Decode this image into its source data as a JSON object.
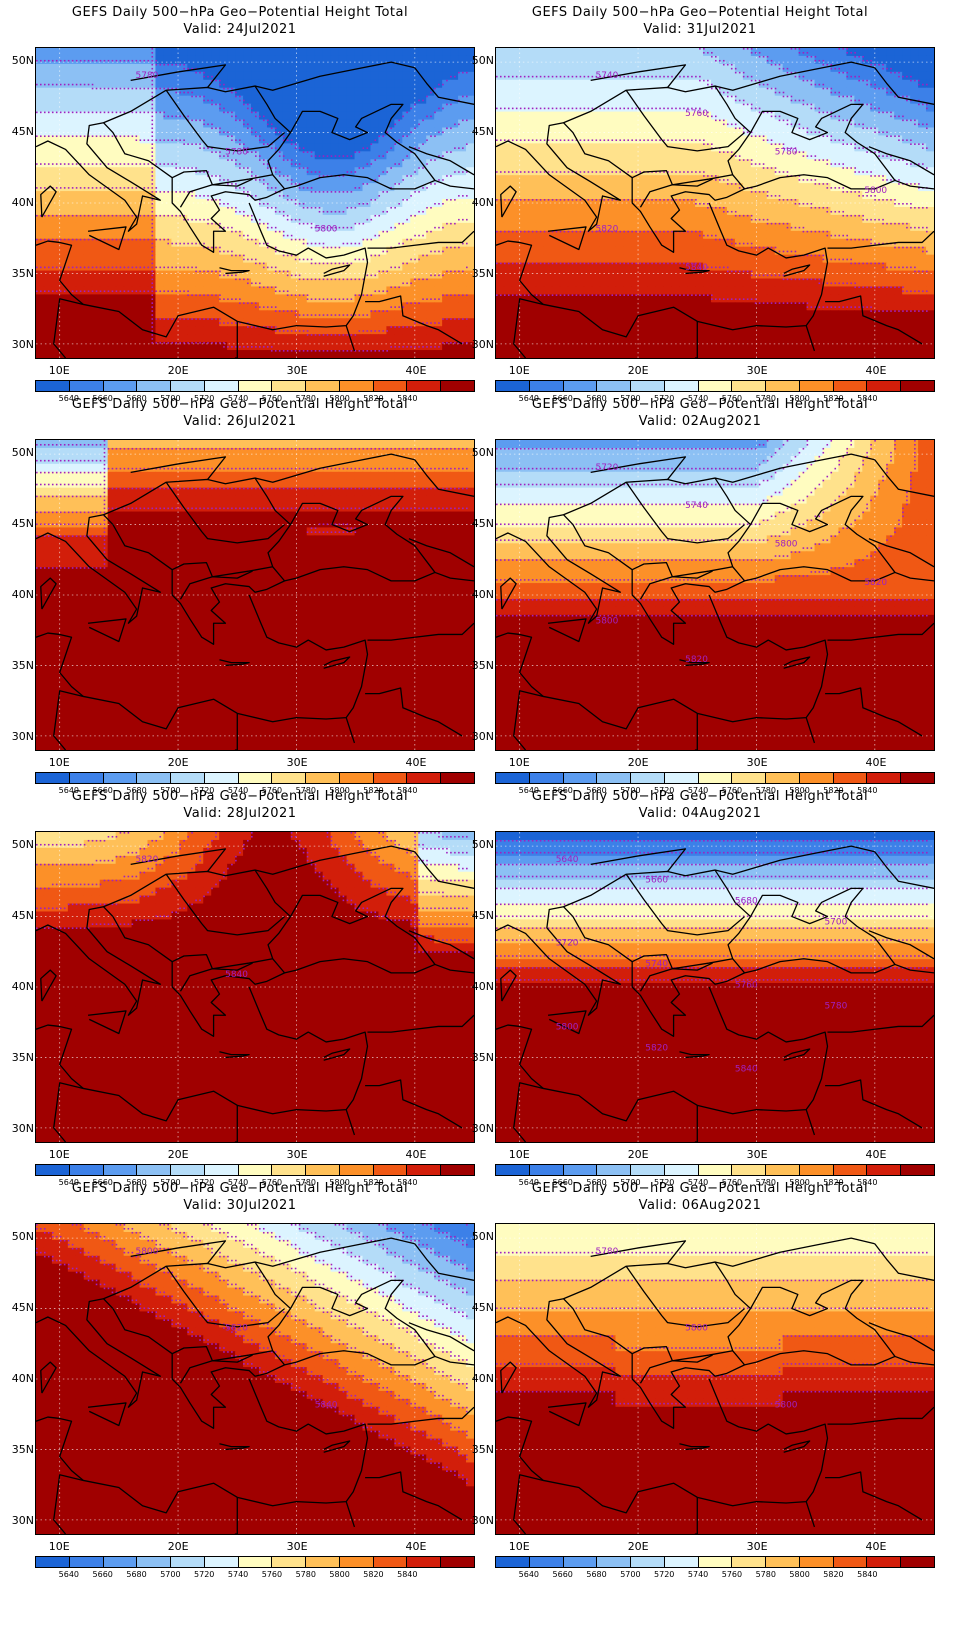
{
  "panels": [
    {
      "title": "GEFS Daily 500−hPa Geo−Potential Height Total",
      "valid": "Valid: 24Jul2021",
      "scenario": "trough_east",
      "labels": [
        "5780",
        "5780",
        "5800"
      ]
    },
    {
      "title": "GEFS Daily 500−hPa Geo−Potential Height Total",
      "valid": "Valid: 31Jul2021",
      "scenario": "cool_north",
      "labels": [
        "5740",
        "5760",
        "5780",
        "5800",
        "5820",
        "5840"
      ]
    },
    {
      "title": "GEFS Daily 500−hPa Geo−Potential Height Total",
      "valid": "Valid: 26Jul2021",
      "scenario": "ridge_dome",
      "labels": []
    },
    {
      "title": "GEFS Daily 500−hPa Geo−Potential Height Total",
      "valid": "Valid: 02Aug2021",
      "scenario": "cold_north",
      "labels": [
        "5720",
        "5740",
        "5800",
        "5820",
        "5800",
        "5820"
      ]
    },
    {
      "title": "GEFS Daily 500−hPa Geo−Potential Height Total",
      "valid": "Valid: 28Jul2021",
      "scenario": "ridge_north",
      "labels": [
        "5820",
        "5840"
      ]
    },
    {
      "title": "GEFS Daily 500−hPa Geo−Potential Height Total",
      "valid": "Valid: 04Aug2021",
      "scenario": "deep_trough",
      "labels": [
        "5640",
        "5660",
        "5680",
        "5700",
        "5720",
        "5740",
        "5760",
        "5780",
        "5800",
        "5820",
        "5840"
      ]
    },
    {
      "title": "GEFS Daily 500−hPa Geo−Potential Height Total",
      "valid": "Valid: 30Jul2021",
      "scenario": "southwest_ridge",
      "labels": [
        "5800",
        "5820",
        "5840"
      ]
    },
    {
      "title": "GEFS Daily 500−hPa Geo−Potential Height Total",
      "valid": "Valid: 06Aug2021",
      "scenario": "warm_south",
      "labels": [
        "5780",
        "5800",
        "5800"
      ]
    }
  ],
  "lat_labels": [
    "50N",
    "45N",
    "40N",
    "35N",
    "30N"
  ],
  "lon_labels": [
    "10E",
    "20E",
    "30E",
    "40E"
  ],
  "colorbar": {
    "colors": [
      "#1b64d6",
      "#3c80e8",
      "#5c9cf0",
      "#8cc0f4",
      "#b4dcf8",
      "#dcf4ff",
      "#fffcc0",
      "#ffe28c",
      "#ffc058",
      "#fc9028",
      "#f05814",
      "#d21e0a",
      "#a00000"
    ],
    "labels": [
      "5640",
      "5660",
      "5680",
      "5700",
      "5720",
      "5740",
      "5760",
      "5780",
      "5800",
      "5820",
      "5840"
    ]
  },
  "contour_color": "#a020c0"
}
